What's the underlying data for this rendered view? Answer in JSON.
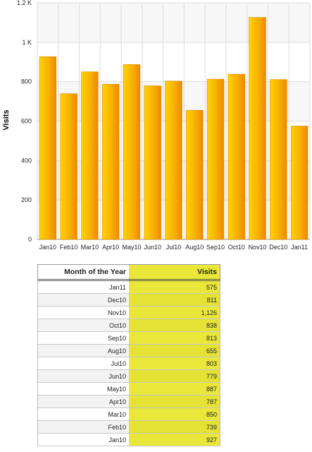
{
  "chart_data": {
    "type": "bar",
    "categories": [
      "Jan10",
      "Feb10",
      "Mar10",
      "Apr10",
      "May10",
      "Jun10",
      "Jul10",
      "Aug10",
      "Sep10",
      "Oct10",
      "Nov10",
      "Dec10",
      "Jan11"
    ],
    "values": [
      927,
      739,
      850,
      787,
      887,
      779,
      803,
      655,
      813,
      838,
      1126,
      811,
      575
    ],
    "ylabel": "Visits",
    "ylim": [
      0,
      1200
    ],
    "yticks": [
      0,
      200,
      400,
      600,
      800,
      1000,
      1200
    ],
    "ytick_labels": [
      "0",
      "200",
      "400",
      "600",
      "800",
      "1 K",
      "1.2 K"
    ],
    "grid": true,
    "colors": {
      "bar_light": "#ffd200",
      "bar_dark": "#ee8800",
      "band": "#f7f7f7",
      "gridline": "#dddddd"
    }
  },
  "table": {
    "headers": {
      "month": "Month of the Year",
      "visits": "Visits"
    },
    "rows": [
      {
        "month": "Jan11",
        "visits": "575"
      },
      {
        "month": "Dec10",
        "visits": "811"
      },
      {
        "month": "Nov10",
        "visits": "1,126"
      },
      {
        "month": "Oct10",
        "visits": "838"
      },
      {
        "month": "Sep10",
        "visits": "813"
      },
      {
        "month": "Aug10",
        "visits": "655"
      },
      {
        "month": "Jul10",
        "visits": "803"
      },
      {
        "month": "Jun10",
        "visits": "779"
      },
      {
        "month": "May10",
        "visits": "887"
      },
      {
        "month": "Apr10",
        "visits": "787"
      },
      {
        "month": "Mar10",
        "visits": "850"
      },
      {
        "month": "Feb10",
        "visits": "739"
      },
      {
        "month": "Jan10",
        "visits": "927"
      }
    ],
    "colors": {
      "visits_bg": "#e9e739"
    }
  }
}
